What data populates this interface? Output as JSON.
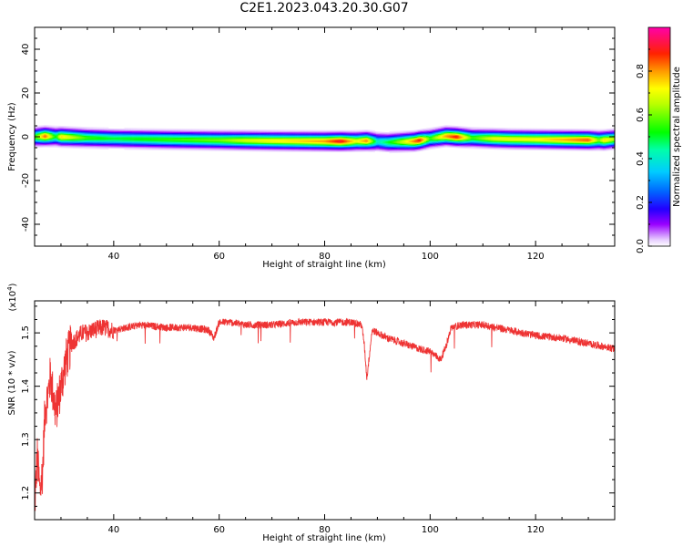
{
  "title": "C2E1.2023.043.20.30.G07",
  "chart_data": [
    {
      "type": "heatmap",
      "xlabel": "Height of straight line (km)",
      "ylabel": "Frequency (Hz)",
      "xlim": [
        25,
        135
      ],
      "ylim": [
        -50,
        50
      ],
      "xticks": [
        40,
        60,
        80,
        100,
        120
      ],
      "yticks": [
        -40,
        -20,
        0,
        20,
        40
      ],
      "colorbar": {
        "label": "Normalized spectral amplitude",
        "range": [
          0,
          1
        ],
        "ticks": [
          "0.0",
          "0.2",
          "0.4",
          "0.6",
          "0.8"
        ]
      },
      "ridge": {
        "x": [
          25,
          27,
          30,
          35,
          40,
          50,
          60,
          70,
          80,
          85,
          88,
          92,
          97,
          100,
          103,
          108,
          115,
          125,
          133,
          135
        ],
        "frequency": [
          0,
          0.3,
          0,
          -0.5,
          -0.8,
          -1.2,
          -1.5,
          -1.8,
          -2.0,
          -2.0,
          -1.8,
          -2.5,
          -2.0,
          -0.8,
          0.3,
          -0.5,
          -1.0,
          -1.3,
          -1.5,
          -1.0
        ]
      },
      "peak_amplitude": {
        "x": [
          25,
          27,
          29,
          30,
          35,
          40,
          50,
          60,
          65,
          70,
          75,
          80,
          83,
          86,
          88,
          90,
          93,
          96,
          98,
          100,
          103,
          105,
          108,
          112,
          120,
          125,
          130,
          132,
          133,
          135
        ],
        "value": [
          0.55,
          0.85,
          0.5,
          0.75,
          0.55,
          0.5,
          0.55,
          0.6,
          0.68,
          0.72,
          0.75,
          0.8,
          0.92,
          0.7,
          0.82,
          0.4,
          0.55,
          0.75,
          0.9,
          0.55,
          0.8,
          0.9,
          0.55,
          0.7,
          0.72,
          0.78,
          0.85,
          0.6,
          0.75,
          0.65
        ]
      }
    },
    {
      "type": "line",
      "xlabel": "Height of straight line (km)",
      "ylabel": "SNR (10 * v/v)",
      "y_multiplier": "(x10",
      "y_multiplier_exp": "4",
      "xlim": [
        25,
        135
      ],
      "ylim": [
        11500,
        15600
      ],
      "xticks": [
        40,
        60,
        80,
        100,
        120
      ],
      "yticks": [
        12000,
        13000,
        14000,
        15000
      ],
      "ytick_labels": [
        "1.2",
        "1.3",
        "1.4",
        "1.5"
      ],
      "color": "#ee3333",
      "series": [
        {
          "x": [
            25,
            25.5,
            26,
            26.5,
            27,
            27.5,
            28,
            29,
            30,
            31,
            32,
            33,
            34,
            35,
            36,
            38,
            40,
            45,
            50,
            55,
            58,
            59,
            60,
            62,
            65,
            70,
            75,
            80,
            85,
            87,
            87.5,
            88,
            88.5,
            89,
            90,
            92,
            95,
            98,
            100,
            102,
            103,
            104,
            106,
            110,
            115,
            120,
            125,
            130,
            135
          ],
          "y": [
            11700,
            12700,
            12000,
            12400,
            13600,
            13800,
            14200,
            13500,
            14000,
            14500,
            14800,
            14900,
            15000,
            15000,
            15050,
            15100,
            15050,
            15150,
            15100,
            15100,
            15050,
            14900,
            15200,
            15200,
            15150,
            15150,
            15200,
            15200,
            15200,
            15150,
            14800,
            14150,
            14600,
            15050,
            15000,
            14900,
            14800,
            14700,
            14650,
            14500,
            14750,
            15100,
            15150,
            15150,
            15050,
            14950,
            14900,
            14800,
            14700
          ]
        }
      ]
    }
  ]
}
